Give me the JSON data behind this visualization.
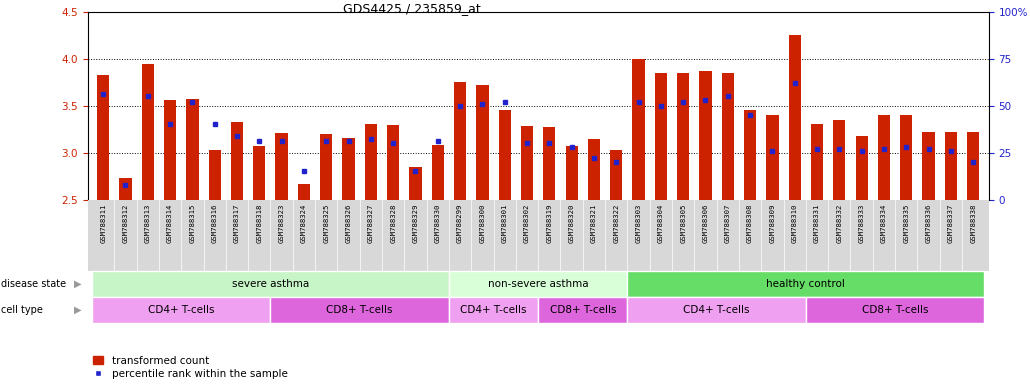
{
  "title": "GDS4425 / 235859_at",
  "samples": [
    "GSM788311",
    "GSM788312",
    "GSM788313",
    "GSM788314",
    "GSM788315",
    "GSM788316",
    "GSM788317",
    "GSM788318",
    "GSM788323",
    "GSM788324",
    "GSM788325",
    "GSM788326",
    "GSM788327",
    "GSM788328",
    "GSM788329",
    "GSM788330",
    "GSM788299",
    "GSM788300",
    "GSM788301",
    "GSM788302",
    "GSM788319",
    "GSM788320",
    "GSM788321",
    "GSM788322",
    "GSM788303",
    "GSM788304",
    "GSM788305",
    "GSM788306",
    "GSM788307",
    "GSM788308",
    "GSM788309",
    "GSM788310",
    "GSM788331",
    "GSM788332",
    "GSM788333",
    "GSM788334",
    "GSM788335",
    "GSM788336",
    "GSM788337",
    "GSM788338"
  ],
  "transformed_count": [
    3.82,
    2.73,
    3.94,
    3.56,
    3.57,
    3.03,
    3.33,
    3.07,
    3.21,
    2.67,
    3.2,
    3.16,
    3.3,
    3.29,
    2.85,
    3.08,
    3.75,
    3.72,
    3.45,
    3.28,
    3.27,
    3.07,
    3.15,
    3.03,
    4.0,
    3.85,
    3.85,
    3.87,
    3.85,
    3.45,
    3.4,
    4.25,
    3.3,
    3.35,
    3.18,
    3.4,
    3.4,
    3.22,
    3.22,
    3.22
  ],
  "percentile_rank": [
    56,
    8,
    55,
    40,
    52,
    40,
    34,
    31,
    31,
    15,
    31,
    31,
    32,
    30,
    15,
    31,
    50,
    51,
    52,
    30,
    30,
    28,
    22,
    20,
    52,
    50,
    52,
    53,
    55,
    45,
    26,
    62,
    27,
    27,
    26,
    27,
    28,
    27,
    26,
    20
  ],
  "disease_state_groups": [
    {
      "label": "severe asthma",
      "start": 0,
      "end": 15,
      "color": "#c8f5c8"
    },
    {
      "label": "non-severe asthma",
      "start": 16,
      "end": 23,
      "color": "#d8ffd8"
    },
    {
      "label": "healthy control",
      "start": 24,
      "end": 39,
      "color": "#66dd66"
    }
  ],
  "cell_type_groups": [
    {
      "label": "CD4+ T-cells",
      "start": 0,
      "end": 7,
      "color": "#f0a0f0"
    },
    {
      "label": "CD8+ T-cells",
      "start": 8,
      "end": 15,
      "color": "#dd66dd"
    },
    {
      "label": "CD4+ T-cells",
      "start": 16,
      "end": 19,
      "color": "#f0a0f0"
    },
    {
      "label": "CD8+ T-cells",
      "start": 20,
      "end": 23,
      "color": "#dd66dd"
    },
    {
      "label": "CD4+ T-cells",
      "start": 24,
      "end": 31,
      "color": "#f0a0f0"
    },
    {
      "label": "CD8+ T-cells",
      "start": 32,
      "end": 39,
      "color": "#dd66dd"
    }
  ],
  "bar_color": "#cc2200",
  "dot_color": "#2222cc",
  "ylim_left": [
    2.5,
    4.5
  ],
  "ylim_right": [
    0,
    100
  ],
  "yticks_left": [
    2.5,
    3.0,
    3.5,
    4.0,
    4.5
  ],
  "yticks_right": [
    0,
    25,
    50,
    75,
    100
  ],
  "hlines": [
    3.0,
    3.5,
    4.0
  ],
  "bar_width": 0.55,
  "tick_label_color_left": "#cc2200",
  "tick_label_color_right": "#2222cc",
  "xlabel_bg": "#d8d8d8"
}
